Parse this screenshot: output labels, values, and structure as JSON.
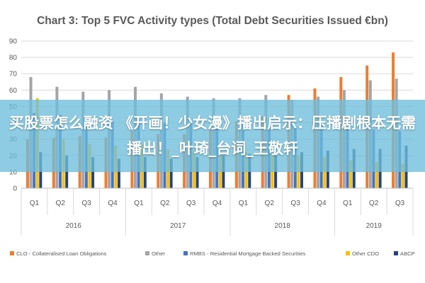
{
  "chart_data": {
    "type": "bar",
    "title": "Chart 3: Top 5 FVC Activity types (Total Debt Securities Issued €bn)",
    "ylim": [
      0,
      90
    ],
    "yticks": [
      0,
      10,
      20,
      30,
      40,
      50,
      60,
      70,
      80,
      90
    ],
    "grid": true,
    "legend_position": "bottom",
    "categories": [
      "Q1",
      "Q2",
      "Q3",
      "Q4",
      "Q1",
      "Q2",
      "Q3",
      "Q4",
      "Q1",
      "Q2",
      "Q3",
      "Q4",
      "Q1",
      "Q2",
      "Q3"
    ],
    "years": [
      {
        "label": "2016",
        "quarters": 4
      },
      {
        "label": "2017",
        "quarters": 4
      },
      {
        "label": "2018",
        "quarters": 4
      },
      {
        "label": "2019",
        "quarters": 3
      }
    ],
    "series": [
      {
        "name": "CLO - Collateralised Loan Obligations",
        "color": "#ED7D31",
        "values": [
          30,
          31,
          32,
          31,
          35,
          33,
          33,
          36,
          41,
          44,
          57,
          61,
          68,
          75,
          83
        ]
      },
      {
        "name": "Other",
        "color": "#A5A5A5",
        "values": [
          68,
          62,
          59,
          60,
          62,
          58,
          56,
          55,
          55,
          57,
          54,
          56,
          60,
          66,
          67
        ]
      },
      {
        "name": "RMBS - Residential Mortgage Backed Securities",
        "color": "#4472C4",
        "values": [
          46,
          45,
          42,
          41,
          42,
          40,
          40,
          39,
          39,
          38,
          37,
          38,
          37,
          36,
          35
        ]
      },
      {
        "name": "Other CDO",
        "color": "#FFC000",
        "values": [
          55,
          30,
          27,
          26,
          27,
          24,
          23,
          23,
          22,
          21,
          20,
          19,
          17,
          16,
          15
        ]
      },
      {
        "name": "ABCP",
        "color": "#264478",
        "values": [
          22,
          20,
          19,
          18,
          19,
          18,
          19,
          20,
          21,
          20,
          22,
          23,
          24,
          24,
          26
        ]
      }
    ]
  },
  "banner": {
    "text": "买股票怎么融资 《开画！少女漫》播出启示：压播剧根本无需播出！_叶琦_台词_王敬轩"
  }
}
